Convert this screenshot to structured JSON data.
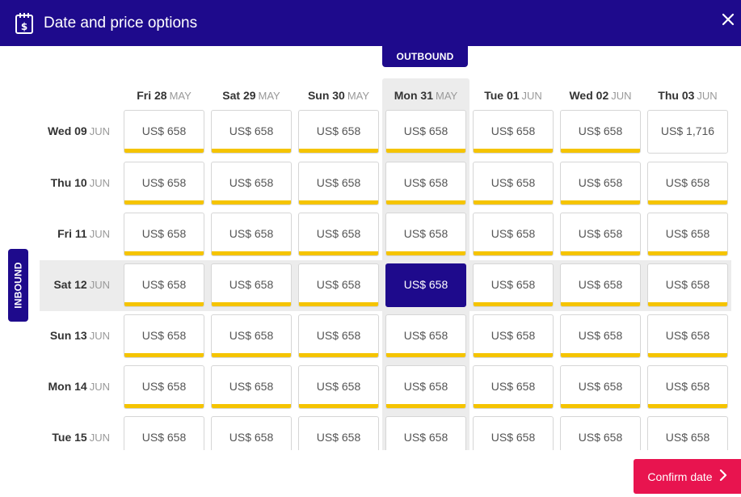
{
  "header": {
    "title": "Date and price options",
    "icon": "calendar-price-icon",
    "close_icon": "close-icon"
  },
  "outbound_label": "OUTBOUND",
  "inbound_label": "INBOUND",
  "columns": [
    {
      "day": "Fri 28",
      "month": "MAY"
    },
    {
      "day": "Sat 29",
      "month": "MAY"
    },
    {
      "day": "Sun 30",
      "month": "MAY"
    },
    {
      "day": "Mon 31",
      "month": "MAY"
    },
    {
      "day": "Tue 01",
      "month": "JUN"
    },
    {
      "day": "Wed 02",
      "month": "JUN"
    },
    {
      "day": "Thu 03",
      "month": "JUN"
    }
  ],
  "rows": [
    {
      "day": "Wed 09",
      "month": "JUN",
      "prices": [
        "US$ 658",
        "US$ 658",
        "US$ 658",
        "US$ 658",
        "US$ 658",
        "US$ 658",
        "US$ 1,716"
      ],
      "cheapest": [
        true,
        true,
        true,
        true,
        true,
        true,
        false
      ]
    },
    {
      "day": "Thu 10",
      "month": "JUN",
      "prices": [
        "US$ 658",
        "US$ 658",
        "US$ 658",
        "US$ 658",
        "US$ 658",
        "US$ 658",
        "US$ 658"
      ],
      "cheapest": [
        true,
        true,
        true,
        true,
        true,
        true,
        true
      ]
    },
    {
      "day": "Fri 11",
      "month": "JUN",
      "prices": [
        "US$ 658",
        "US$ 658",
        "US$ 658",
        "US$ 658",
        "US$ 658",
        "US$ 658",
        "US$ 658"
      ],
      "cheapest": [
        true,
        true,
        true,
        true,
        true,
        true,
        true
      ]
    },
    {
      "day": "Sat 12",
      "month": "JUN",
      "prices": [
        "US$ 658",
        "US$ 658",
        "US$ 658",
        "US$ 658",
        "US$ 658",
        "US$ 658",
        "US$ 658"
      ],
      "cheapest": [
        true,
        true,
        true,
        true,
        true,
        true,
        true
      ]
    },
    {
      "day": "Sun 13",
      "month": "JUN",
      "prices": [
        "US$ 658",
        "US$ 658",
        "US$ 658",
        "US$ 658",
        "US$ 658",
        "US$ 658",
        "US$ 658"
      ],
      "cheapest": [
        true,
        true,
        true,
        true,
        true,
        true,
        true
      ]
    },
    {
      "day": "Mon 14",
      "month": "JUN",
      "prices": [
        "US$ 658",
        "US$ 658",
        "US$ 658",
        "US$ 658",
        "US$ 658",
        "US$ 658",
        "US$ 658"
      ],
      "cheapest": [
        true,
        true,
        true,
        true,
        true,
        true,
        true
      ]
    },
    {
      "day": "Tue 15",
      "month": "JUN",
      "prices": [
        "US$ 658",
        "US$ 658",
        "US$ 658",
        "US$ 658",
        "US$ 658",
        "US$ 658",
        "US$ 658"
      ],
      "cheapest": [
        true,
        true,
        true,
        true,
        true,
        true,
        true
      ]
    }
  ],
  "selected": {
    "row": 3,
    "col": 3
  },
  "confirm_button": {
    "label": "Confirm date",
    "icon": "chevron-right-icon"
  },
  "colors": {
    "brand": "#1e0a8c",
    "cheapest_bar": "#f5c400",
    "confirm": "#e8144f",
    "highlight": "#ececec"
  }
}
